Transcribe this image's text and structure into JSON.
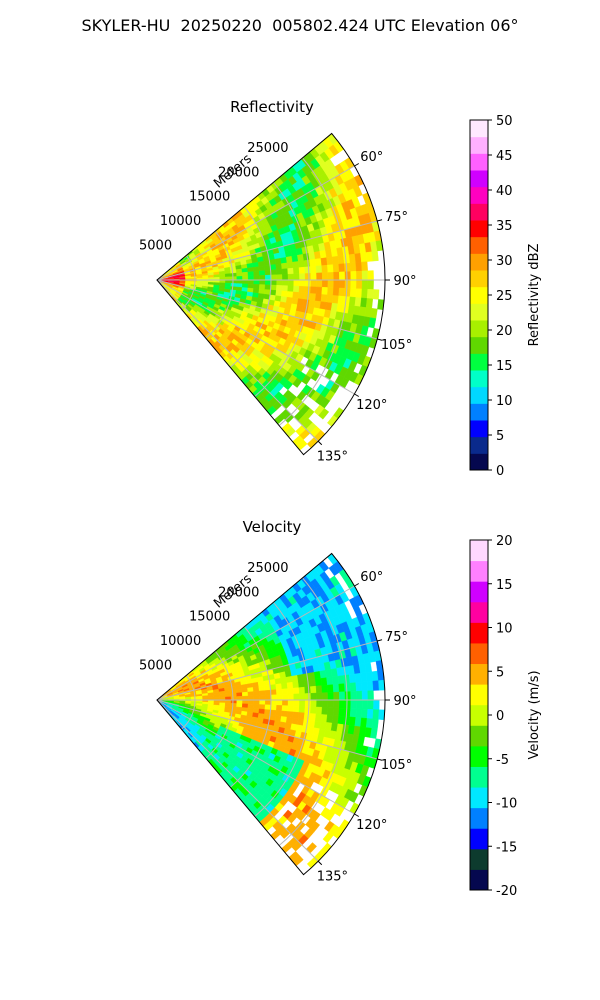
{
  "figure": {
    "title": "SKYLER-HU  20250220  005802.424 UTC Elevation 06°"
  },
  "chart_data": [
    {
      "type": "heatmap",
      "projection": "polar-sector",
      "title": "Reflectivity",
      "radial_label": "Meters",
      "radial_ticks": [
        5000,
        10000,
        15000,
        20000,
        25000
      ],
      "radial_range": [
        0,
        30000
      ],
      "azimuth_ticks": [
        "60°",
        "75°",
        "90°",
        "105°",
        "120°",
        "135°"
      ],
      "azimuth_range_deg": [
        50,
        140
      ],
      "grid": true,
      "colorbar": {
        "label": "Reflectivity dBZ",
        "ticks": [
          0,
          5,
          10,
          15,
          20,
          25,
          30,
          35,
          40,
          45,
          50
        ],
        "range": [
          0,
          50
        ],
        "colors": [
          "#05084f",
          "#0a2a8c",
          "#0000ff",
          "#0080ff",
          "#00d8ff",
          "#00ffc8",
          "#00ff40",
          "#60d800",
          "#a8f000",
          "#e0ff20",
          "#ffff00",
          "#ffd000",
          "#ffa000",
          "#ff6000",
          "#ff0000",
          "#ff0060",
          "#ff00c0",
          "#d000ff",
          "#ff60ff",
          "#ffb0ff",
          "#ffe8ff"
        ]
      }
    },
    {
      "type": "heatmap",
      "projection": "polar-sector",
      "title": "Velocity",
      "radial_label": "Meters",
      "radial_ticks": [
        5000,
        10000,
        15000,
        20000,
        25000
      ],
      "radial_range": [
        0,
        30000
      ],
      "azimuth_ticks": [
        "60°",
        "75°",
        "90°",
        "105°",
        "120°",
        "135°"
      ],
      "azimuth_range_deg": [
        50,
        140
      ],
      "grid": true,
      "colorbar": {
        "label": "Velocity (m/s)",
        "ticks": [
          -20,
          -15,
          -10,
          -5,
          0,
          5,
          10,
          15,
          20
        ],
        "range": [
          -20,
          20
        ],
        "colors": [
          "#05084f",
          "#0d3b2e",
          "#0000ff",
          "#0080ff",
          "#00e8ff",
          "#00ff90",
          "#00ff00",
          "#60d800",
          "#c8ff00",
          "#ffff00",
          "#ffb000",
          "#ff6000",
          "#ff0000",
          "#ff00a0",
          "#d000ff",
          "#ff80ff",
          "#ffd8ff"
        ]
      }
    }
  ],
  "colors": {
    "grid": "#b8b8b8",
    "frame": "#000000"
  }
}
